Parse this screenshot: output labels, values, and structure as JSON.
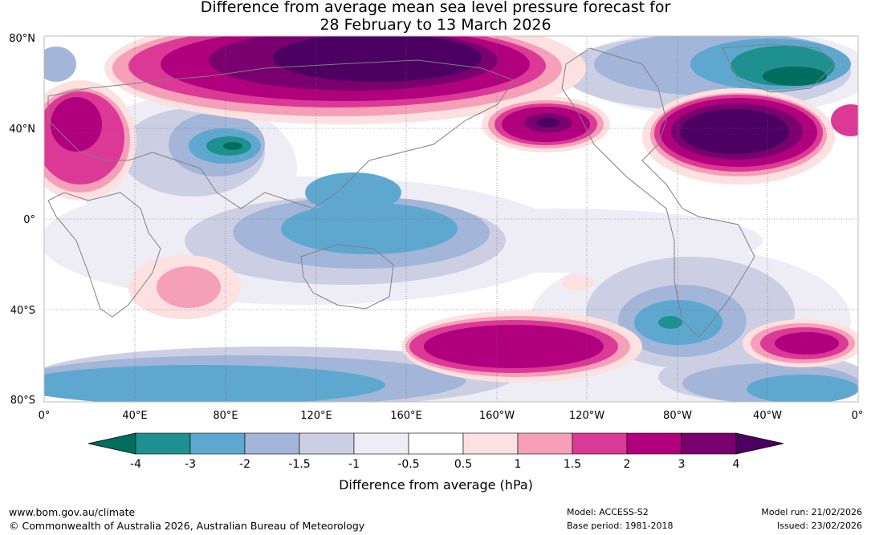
{
  "header": {
    "title_line1": "Difference from average mean sea level pressure forecast for",
    "title_line2": "28 February to 13 March 2026"
  },
  "map": {
    "lat_labels": [
      "80°N",
      "40°N",
      "0°",
      "40°S",
      "80°S"
    ],
    "lon_labels": [
      "0°",
      "40°E",
      "80°E",
      "120°E",
      "160°E",
      "160°W",
      "120°W",
      "80°W",
      "40°W",
      "0°"
    ]
  },
  "colorbar": {
    "ticks": [
      "-4",
      "-3",
      "-2",
      "-1.5",
      "-1",
      "-0.5",
      "0.5",
      "1",
      "1.5",
      "2",
      "3",
      "4"
    ],
    "colors": [
      "#006e5e",
      "#1f9090",
      "#5ea8d0",
      "#a3b5d8",
      "#cccfe4",
      "#eeedf5",
      "#ffffff",
      "#fde0e0",
      "#f5a0b8",
      "#dc3896",
      "#b0007e",
      "#7a0070",
      "#4b0062"
    ],
    "label": "Difference from average (hPa)"
  },
  "footer": {
    "url": "www.bom.gov.au/climate",
    "copyright": "© Commonwealth of Australia 2026, Australian Bureau of Meteorology",
    "model": "Model: ACCESS-S2",
    "base_period": "Base period: 1981-2018",
    "model_run": "Model run: 21/02/2026",
    "issued": "Issued: 23/02/2026"
  }
}
